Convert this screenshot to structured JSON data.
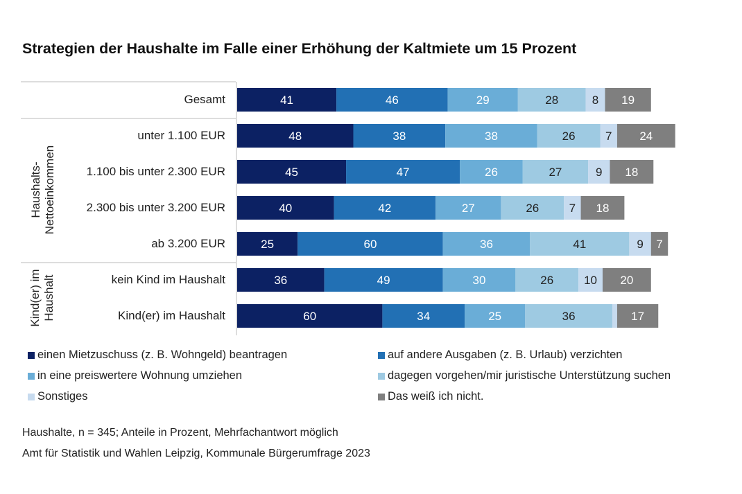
{
  "chart_data": {
    "type": "bar",
    "orientation": "horizontal",
    "stacked": true,
    "title": "Strategien der Haushalte im Falle einer Erhöhung der Kaltmiete um 15 Prozent",
    "categories": [
      "Gesamt",
      "unter 1.100 EUR",
      "1.100 bis unter 2.300 EUR",
      "2.300 bis unter 3.200 EUR",
      "ab 3.200 EUR",
      "kein Kind im Haushalt",
      "Kind(er) im Haushalt"
    ],
    "groups": [
      {
        "label": "Haushalts-\nNettoeinkommen",
        "line1": "Haushalts-",
        "line2": "Nettoeinkommen"
      },
      {
        "label": "Kind(er) im\nHaushalt",
        "line1": "Kind(er) im",
        "line2": "Haushalt"
      }
    ],
    "series": [
      {
        "name": "einen Mietzuschuss (z. B. Wohngeld) beantragen",
        "color": "#0c2163",
        "label_color": "#ffffff",
        "values": [
          41,
          48,
          45,
          40,
          25,
          36,
          60
        ]
      },
      {
        "name": "auf andere Ausgaben (z. B. Urlaub) verzichten",
        "color": "#2270b4",
        "label_color": "#ffffff",
        "values": [
          46,
          38,
          47,
          42,
          60,
          49,
          34
        ]
      },
      {
        "name": "in eine preiswertere Wohnung umziehen",
        "color": "#6aadd7",
        "label_color": "#ffffff",
        "values": [
          29,
          38,
          26,
          27,
          36,
          30,
          25
        ]
      },
      {
        "name": "dagegen vorgehen/mir juristische Unterstützung suchen",
        "color": "#9ecae2",
        "label_color": "#222222",
        "values": [
          28,
          26,
          27,
          26,
          41,
          26,
          36
        ]
      },
      {
        "name": "Sonstiges",
        "color": "#c7dbef",
        "label_color": "#222222",
        "values": [
          8,
          7,
          9,
          7,
          9,
          10,
          2
        ],
        "labels_shown": [
          true,
          true,
          true,
          true,
          true,
          true,
          false
        ]
      },
      {
        "name": "Das weiß ich nicht.",
        "color": "#7f7f7f",
        "label_color": "#ffffff",
        "values": [
          19,
          24,
          18,
          18,
          7,
          20,
          17
        ]
      }
    ],
    "legend_position": "bottom",
    "grid": false
  },
  "notes": [
    "Haushalte, n = 345; Anteile in Prozent, Mehrfachantwort möglich",
    "Amt für Statistik und Wahlen Leipzig, Kommunale Bürgerumfrage 2023"
  ]
}
